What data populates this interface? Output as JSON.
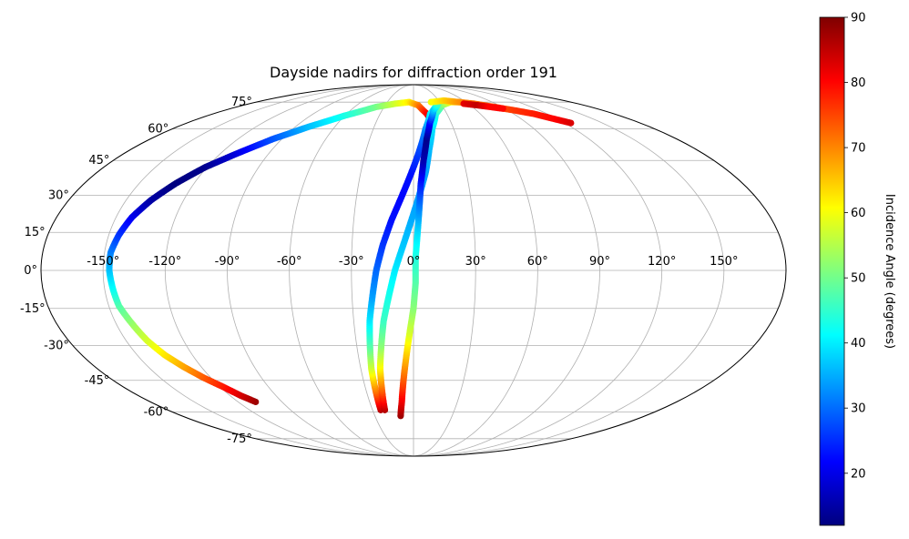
{
  "chart_data": {
    "type": "scatter",
    "projection": "mollweide",
    "title": "Dayside nadirs for diffraction order 191",
    "xlabel": "",
    "ylabel": "",
    "xlim": [
      -180,
      180
    ],
    "ylim": [
      -90,
      90
    ],
    "grid": true,
    "x_ticks": [
      -150,
      -120,
      -90,
      -60,
      -30,
      0,
      30,
      60,
      90,
      120,
      150
    ],
    "y_ticks": [
      -75,
      -60,
      -45,
      -30,
      -15,
      0,
      15,
      30,
      45,
      60,
      75
    ],
    "x_tick_labels": [
      "-150°",
      "-120°",
      "-90°",
      "-60°",
      "-30°",
      "0°",
      "30°",
      "60°",
      "90°",
      "120°",
      "150°"
    ],
    "y_tick_labels": [
      "-75°",
      "-60°",
      "-45°",
      "-30°",
      "-15°",
      "0°",
      "15°",
      "30°",
      "45°",
      "60°",
      "75°"
    ],
    "colorbar": {
      "label": "Incidence Angle (degrees)",
      "colormap": "jet",
      "range": [
        12,
        90
      ],
      "ticks": [
        20,
        30,
        40,
        50,
        60,
        70,
        80,
        90
      ],
      "tick_labels": [
        "20",
        "30",
        "40",
        "50",
        "60",
        "70",
        "80",
        "90"
      ]
    },
    "series": [
      {
        "points": [
          [
            -108,
            -55,
            88
          ],
          [
            -113,
            -52,
            84
          ],
          [
            -118,
            -48,
            79
          ],
          [
            -124,
            -44,
            74
          ],
          [
            -130,
            -39,
            68
          ],
          [
            -135,
            -34,
            63
          ],
          [
            -139,
            -28,
            58
          ],
          [
            -142,
            -21,
            53
          ],
          [
            -145,
            -14,
            48
          ],
          [
            -146,
            -7,
            42
          ],
          [
            -147,
            0,
            37
          ],
          [
            -147,
            7,
            32
          ],
          [
            -145,
            14,
            26
          ],
          [
            -142,
            21,
            21
          ],
          [
            -137,
            28,
            15
          ],
          [
            -130,
            35,
            12
          ],
          [
            -121,
            42,
            13
          ],
          [
            -110,
            48,
            19
          ],
          [
            -96,
            55,
            28
          ],
          [
            -80,
            61,
            36
          ],
          [
            -60,
            67,
            43
          ],
          [
            -38,
            72,
            50
          ],
          [
            -20,
            74,
            57
          ],
          [
            -5,
            75,
            62
          ],
          [
            5,
            73,
            70
          ],
          [
            12,
            68,
            80
          ],
          [
            15,
            63,
            88
          ]
        ]
      },
      {
        "points": [
          [
            -24,
            -59,
            86
          ],
          [
            -24,
            -50,
            72
          ],
          [
            -24,
            -40,
            58
          ],
          [
            -23,
            -30,
            48
          ],
          [
            -22,
            -20,
            40
          ],
          [
            -20,
            -10,
            34
          ],
          [
            -18,
            0,
            30
          ],
          [
            -15,
            10,
            26
          ],
          [
            -11,
            20,
            23
          ],
          [
            -6,
            30,
            22
          ],
          [
            -1,
            40,
            23
          ],
          [
            4,
            50,
            27
          ],
          [
            9,
            60,
            32
          ],
          [
            15,
            68,
            40
          ],
          [
            24,
            73,
            50
          ],
          [
            34,
            75,
            60
          ],
          [
            42,
            75,
            68
          ]
        ]
      },
      {
        "points": [
          [
            -21,
            -59,
            86
          ],
          [
            -20,
            -50,
            74
          ],
          [
            -19,
            -40,
            62
          ],
          [
            -17,
            -30,
            52
          ],
          [
            -15,
            -20,
            46
          ],
          [
            -12,
            -10,
            43
          ],
          [
            -9,
            0,
            40
          ],
          [
            -5,
            10,
            37
          ],
          [
            -1,
            20,
            35
          ],
          [
            3,
            30,
            34
          ],
          [
            7,
            40,
            34
          ],
          [
            10,
            50,
            36
          ],
          [
            14,
            60,
            39
          ],
          [
            20,
            68,
            43
          ],
          [
            30,
            73,
            50
          ],
          [
            42,
            75,
            60
          ],
          [
            52,
            75,
            68
          ]
        ]
      },
      {
        "points": [
          [
            -10,
            -62,
            88
          ],
          [
            -8,
            -55,
            82
          ],
          [
            -6,
            -45,
            74
          ],
          [
            -4,
            -35,
            66
          ],
          [
            -2,
            -25,
            58
          ],
          [
            0,
            -15,
            52
          ],
          [
            1,
            -5,
            48
          ],
          [
            1,
            5,
            44
          ],
          [
            2,
            15,
            39
          ],
          [
            3,
            25,
            32
          ],
          [
            4,
            35,
            24
          ],
          [
            6,
            45,
            16
          ],
          [
            9,
            55,
            13
          ],
          [
            13,
            63,
            22
          ],
          [
            19,
            70,
            36
          ],
          [
            27,
            74,
            46
          ]
        ]
      },
      {
        "points": [
          [
            20,
            75,
            60
          ],
          [
            36,
            76,
            64
          ],
          [
            52,
            75,
            69
          ],
          [
            66,
            74,
            72
          ],
          [
            82,
            72,
            74
          ],
          [
            96,
            70,
            76
          ],
          [
            108,
            68,
            78
          ],
          [
            118,
            65,
            80
          ],
          [
            125,
            63,
            83
          ]
        ]
      },
      {
        "points": [
          [
            55,
            74,
            82
          ],
          [
            68,
            73,
            85
          ],
          [
            78,
            72,
            80
          ],
          [
            88,
            71,
            80
          ]
        ]
      }
    ]
  }
}
